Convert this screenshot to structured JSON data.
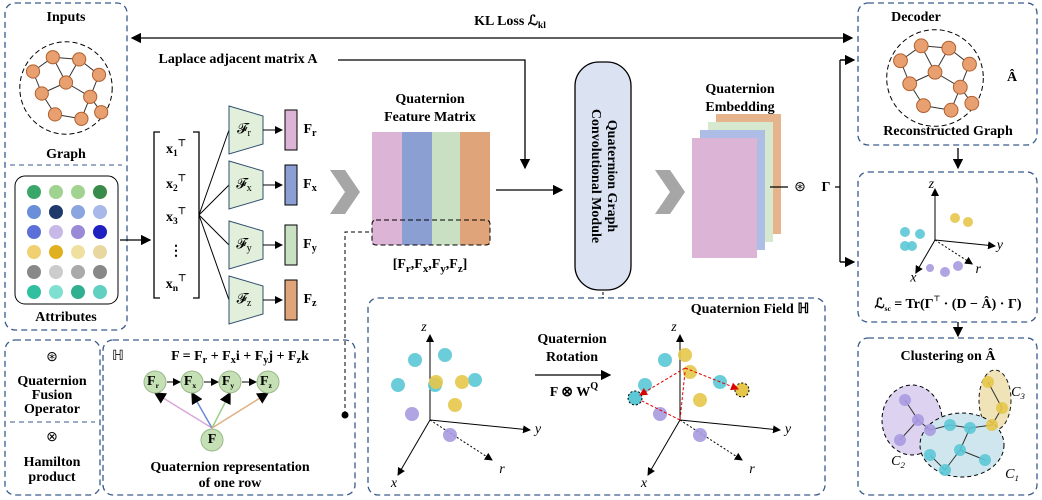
{
  "inputs": {
    "title": "Inputs",
    "graph": "Graph",
    "attributes": "Attributes"
  },
  "legend": {
    "fusion_symbol": "⊛",
    "fusion_label": [
      "Quaternion",
      "Fusion",
      "Operator"
    ],
    "hamilton_symbol": "⊗",
    "hamilton_label": [
      "Hamilton",
      "product"
    ]
  },
  "kl_loss": {
    "text": "KL Loss ",
    "symbol": "ℒ",
    "sub": "kl"
  },
  "laplace": "Laplace adjacent matrix A",
  "node_matrix": {
    "base": "x",
    "sup": "⊤",
    "subs": [
      "1",
      "2",
      "3",
      "n"
    ],
    "dots": "⋮"
  },
  "encoders": {
    "op": "𝓕",
    "feature": "F",
    "subs": [
      "r",
      "x",
      "y",
      "z"
    ]
  },
  "feature_matrix": {
    "title": [
      "Quaternion",
      "Feature Matrix"
    ],
    "open": "[",
    "sep": ",",
    "close": "]"
  },
  "module": [
    "Quaternion Graph",
    "Convolutional Module"
  ],
  "embedding": [
    "Quaternion",
    "Embedding"
  ],
  "fusion": {
    "op": "⊛",
    "gamma": "Γ"
  },
  "decoder": {
    "title": "Decoder",
    "a_hat": "Â",
    "caption": "Reconstructed Graph"
  },
  "scatter": {
    "axes": [
      "z",
      "y",
      "x",
      "r"
    ],
    "loss": [
      "ℒ",
      "sc",
      " = Tr(Γ",
      "⊤",
      " · (D − Â) · Γ)"
    ]
  },
  "clustering": {
    "title": "Clustering on Â",
    "symbol": "C",
    "clusters": [
      "1",
      "2",
      "3"
    ]
  },
  "representation": {
    "space": "ℍ",
    "formula": [
      "F = F",
      "r",
      " + F",
      "x",
      "i + F",
      "y",
      "j + F",
      "z",
      "k"
    ],
    "root": "F",
    "caption": [
      "Quaternion representation",
      "of one row"
    ]
  },
  "rotation": {
    "title": [
      "Quaternion",
      "Rotation"
    ],
    "op": "F ⊗ W",
    "sup": "Q",
    "field": "Quaternion Field ℍ",
    "axes": [
      "z",
      "y",
      "x",
      "r"
    ]
  }
}
